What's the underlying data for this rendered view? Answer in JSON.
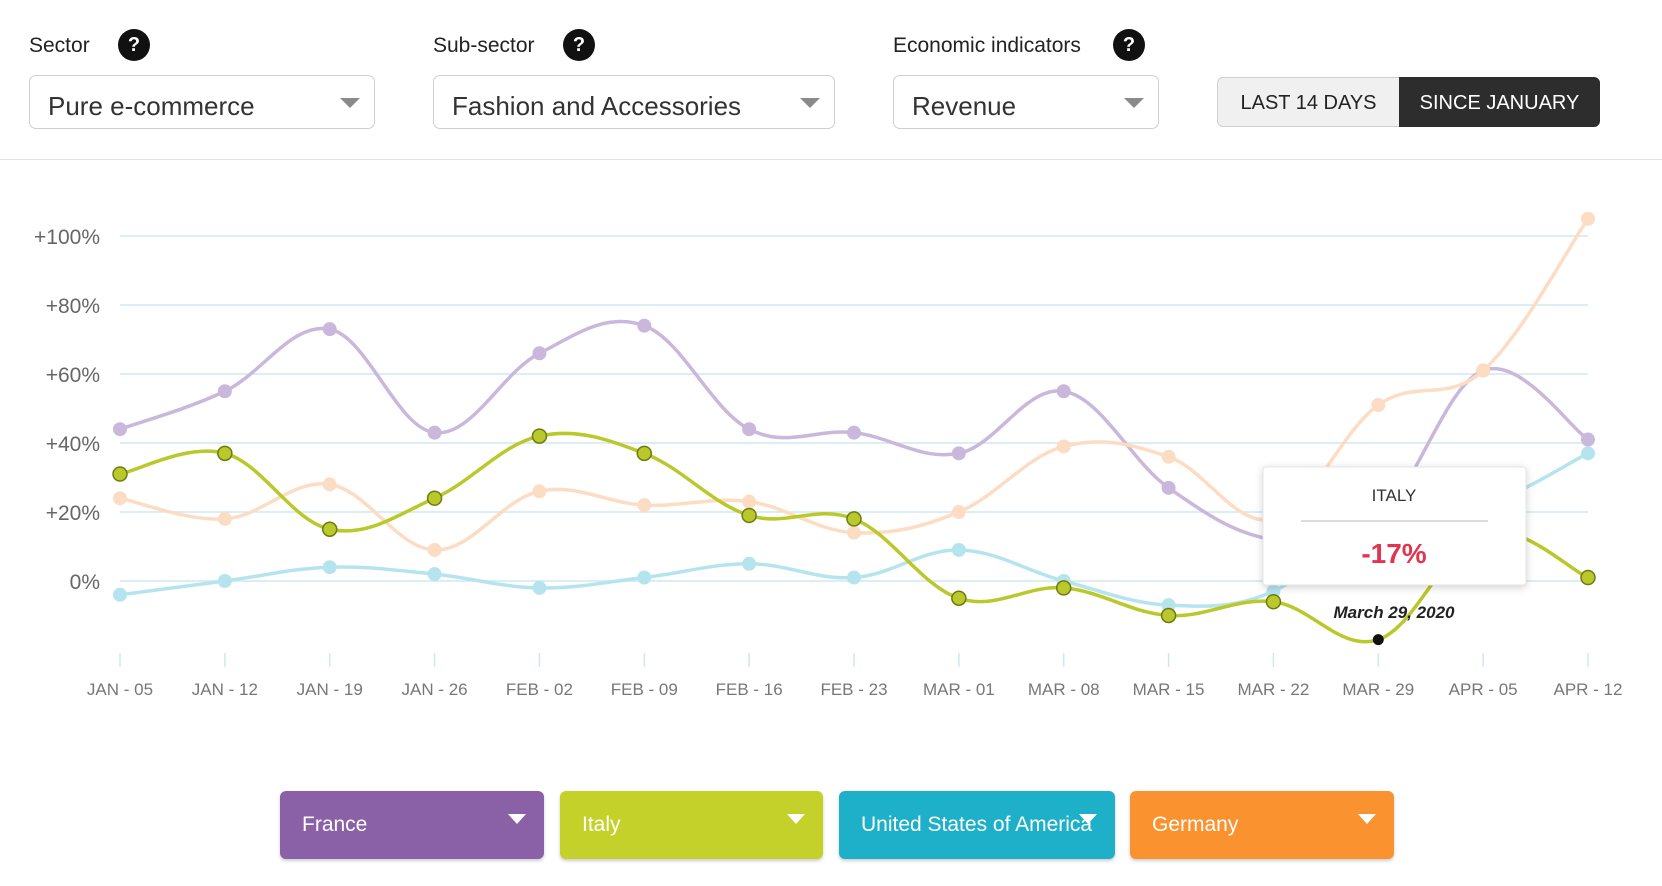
{
  "filters": {
    "sector": {
      "label": "Sector",
      "value": "Pure e-commerce"
    },
    "subsector": {
      "label": "Sub-sector",
      "value": "Fashion and Accessories"
    },
    "indicator": {
      "label": "Economic indicators",
      "value": "Revenue"
    },
    "help_glyph": "?",
    "period": {
      "last14": "LAST 14 DAYS",
      "since_january": "SINCE JANUARY",
      "active": "since_january"
    }
  },
  "tooltip": {
    "country": "ITALY",
    "value": "-17%",
    "date": "March 29, 2020"
  },
  "legend": [
    {
      "label": "France",
      "color": "#8a60a7"
    },
    {
      "label": "Italy",
      "color": "#c3d12a"
    },
    {
      "label": "United States of America",
      "color": "#1fb0c9"
    },
    {
      "label": "Germany",
      "color": "#fb9230"
    }
  ],
  "chart_data": {
    "type": "line",
    "categories": [
      "JAN - 05",
      "JAN - 12",
      "JAN - 19",
      "JAN - 26",
      "FEB - 02",
      "FEB - 09",
      "FEB - 16",
      "FEB - 23",
      "MAR - 01",
      "MAR - 08",
      "MAR - 15",
      "MAR - 22",
      "MAR - 29",
      "APR - 05",
      "APR - 12"
    ],
    "yticks": [
      0,
      20,
      40,
      60,
      80,
      100
    ],
    "ytick_labels": [
      "0%",
      "+20%",
      "+40%",
      "+60%",
      "+80%",
      "+100%"
    ],
    "ylim": [
      -22,
      108
    ],
    "grid": true,
    "highlighted_series": "Italy",
    "series": [
      {
        "name": "France",
        "color": "#c9b8dc",
        "values": [
          44,
          55,
          73,
          43,
          66,
          74,
          44,
          43,
          37,
          55,
          27,
          12,
          18,
          61,
          41
        ]
      },
      {
        "name": "Germany",
        "color": "#fddcc4",
        "values": [
          24,
          18,
          28,
          9,
          26,
          22,
          23,
          14,
          20,
          39,
          36,
          18,
          51,
          61,
          105
        ]
      },
      {
        "name": "United States of America",
        "color": "#b6e4ee",
        "values": [
          -4,
          0,
          4,
          2,
          -2,
          1,
          5,
          1,
          9,
          0,
          -7,
          -3,
          20,
          22,
          37
        ]
      },
      {
        "name": "Italy",
        "color": "#b9c82a",
        "values": [
          31,
          37,
          15,
          24,
          42,
          37,
          19,
          18,
          -5,
          -2,
          -10,
          -6,
          -17,
          14,
          1
        ]
      }
    ]
  }
}
